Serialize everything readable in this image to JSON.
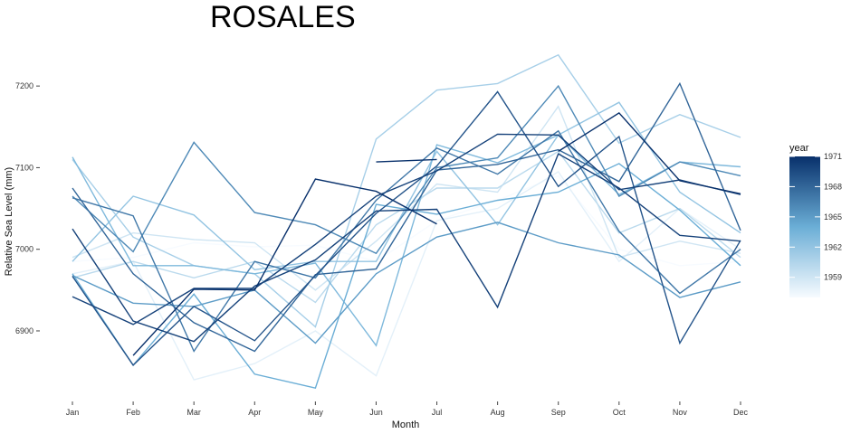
{
  "chart_data": {
    "type": "line",
    "title": "ROSALES",
    "xlabel": "Month",
    "ylabel": "Relative Sea Level (mm)",
    "categories": [
      "Jan",
      "Feb",
      "Mar",
      "Apr",
      "May",
      "Jun",
      "Jul",
      "Aug",
      "Sep",
      "Oct",
      "Nov",
      "Dec"
    ],
    "y_ticks": [
      6900,
      7000,
      7100,
      7200
    ],
    "ylim": [
      6818,
      7250
    ],
    "grid": false,
    "legend": {
      "title": "year",
      "placement": "right",
      "type": "colorbar",
      "ticks": [
        1959,
        1962,
        1965,
        1968,
        1971
      ],
      "range": [
        1957,
        1971
      ],
      "colors": [
        "#f7fbff",
        "#08306b"
      ]
    },
    "series": [
      {
        "year": 1957,
        "values": [
          6985,
          6990,
          7008,
          7003,
          7005,
          6985,
          7035,
          7060,
          7090,
          7000,
          6980,
          6985
        ]
      },
      {
        "year": 1958,
        "values": [
          6970,
          6985,
          6840,
          6860,
          6900,
          6845,
          7035,
          7050,
          7095,
          6985,
          7050,
          7000
        ]
      },
      {
        "year": 1959,
        "values": [
          6990,
          7020,
          7012,
          7008,
          6950,
          7010,
          7080,
          7070,
          7175,
          6990,
          7010,
          6995
        ]
      },
      {
        "year": 1960,
        "values": [
          6965,
          6985,
          6965,
          6985,
          6935,
          7030,
          7075,
          7075,
          7120,
          7020,
          7050,
          6990
        ]
      },
      {
        "year": 1961,
        "values": [
          7110,
          7015,
          6980,
          6970,
          6905,
          7135,
          7195,
          7203,
          7238,
          7130,
          7165,
          7137
        ]
      },
      {
        "year": 1962,
        "values": [
          6985,
          7065,
          7042,
          6975,
          6985,
          6985,
          7120,
          7030,
          7140,
          7180,
          7070,
          7020
        ]
      },
      {
        "year": 1963,
        "values": [
          7113,
          6980,
          6980,
          6970,
          6983,
          6882,
          7128,
          7106,
          7140,
          7067,
          7107,
          7101
        ]
      },
      {
        "year": 1964,
        "values": [
          6970,
          6858,
          6945,
          6847,
          6830,
          7055,
          7043,
          7060,
          7070,
          7105,
          7048,
          6980
        ]
      },
      {
        "year": 1965,
        "values": [
          6968,
          6934,
          6930,
          6950,
          6885,
          6970,
          7015,
          7033,
          7008,
          6993,
          6941,
          6960
        ]
      },
      {
        "year": 1966,
        "values": [
          7065,
          6997,
          7131,
          7045,
          7030,
          6995,
          7100,
          7112,
          7200,
          7065,
          7107,
          7090
        ]
      },
      {
        "year": 1967,
        "values": [
          7063,
          7041,
          6875,
          6985,
          6965,
          7060,
          7124,
          7092,
          7145,
          7022,
          6946,
          7000
        ]
      },
      {
        "year": 1968,
        "values": [
          7075,
          6970,
          6910,
          6875,
          6969,
          6976,
          7097,
          7104,
          7122,
          7083,
          7203,
          7023
        ]
      },
      {
        "year": 1969,
        "values": [
          6967,
          6858,
          6930,
          6888,
          6968,
          7044,
          7102,
          7193,
          7077,
          7138,
          6885,
          7011
        ]
      },
      {
        "year": 1970,
        "values": [
          7025,
          6912,
          6887,
          6955,
          6987,
          7047,
          7049,
          6929,
          7117,
          7075,
          7017,
          7010
        ]
      },
      {
        "year": 1970,
        "values": [
          6942,
          6908,
          6952,
          6952,
          7006,
          7065,
          7096,
          7141,
          7140,
          7073,
          7085,
          7067
        ]
      },
      {
        "year": 1971,
        "values": [
          null,
          6870,
          6951,
          6950,
          7086,
          7071,
          7031,
          null,
          null,
          null,
          null,
          null
        ]
      },
      {
        "year": 1971,
        "values": [
          null,
          null,
          null,
          null,
          null,
          7107,
          7110,
          null,
          null,
          null,
          null,
          null
        ]
      },
      {
        "year": 1971,
        "values": [
          null,
          null,
          null,
          null,
          null,
          null,
          null,
          null,
          7120,
          7167,
          7084,
          7068
        ]
      }
    ]
  }
}
